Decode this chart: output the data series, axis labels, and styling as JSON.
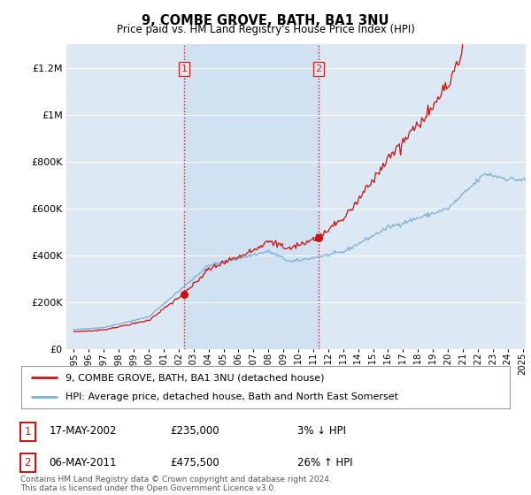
{
  "title": "9, COMBE GROVE, BATH, BA1 3NU",
  "subtitle": "Price paid vs. HM Land Registry's House Price Index (HPI)",
  "bg_color": "#dce9f5",
  "shade_color": "#c8dcf0",
  "line1_color": "#cc1111",
  "line2_color": "#7aaed4",
  "vline_color": "#cc2222",
  "sale1_year": 2002.37,
  "sale1_price": 235000,
  "sale2_year": 2011.35,
  "sale2_price": 475500,
  "ylim": [
    0,
    1300000
  ],
  "xlim": [
    1994.5,
    2025.2
  ],
  "legend1_label": "9, COMBE GROVE, BATH, BA1 3NU (detached house)",
  "legend2_label": "HPI: Average price, detached house, Bath and North East Somerset",
  "table_entries": [
    {
      "num": "1",
      "date": "17-MAY-2002",
      "price": "£235,000",
      "pct": "3% ↓ HPI"
    },
    {
      "num": "2",
      "date": "06-MAY-2011",
      "price": "£475,500",
      "pct": "26% ↑ HPI"
    }
  ],
  "footer": "Contains HM Land Registry data © Crown copyright and database right 2024.\nThis data is licensed under the Open Government Licence v3.0."
}
